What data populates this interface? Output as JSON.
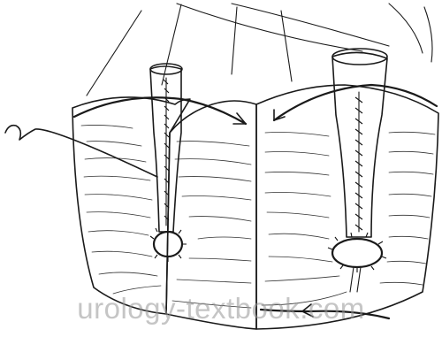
{
  "watermark": {
    "text": "urology-textbook.com"
  },
  "colors": {
    "ink": "#1a1a1a",
    "watermark": "#969696",
    "background": "#ffffff"
  }
}
